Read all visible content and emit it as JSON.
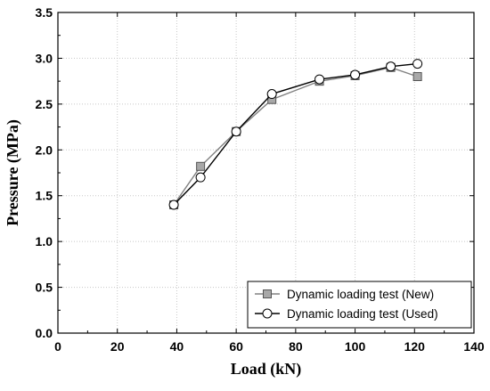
{
  "chart_data": {
    "type": "line",
    "title": "",
    "xlabel": "Load (kN)",
    "ylabel": "Pressure (MPa)",
    "xlim": [
      0,
      140
    ],
    "ylim": [
      0.0,
      3.5
    ],
    "xticks": [
      0,
      20,
      40,
      60,
      80,
      100,
      120,
      140
    ],
    "yticks": [
      0.0,
      0.5,
      1.0,
      1.5,
      2.0,
      2.5,
      3.0,
      3.5
    ],
    "xtick_labels": [
      "0",
      "20",
      "40",
      "60",
      "80",
      "100",
      "120",
      "140"
    ],
    "ytick_labels": [
      "0.0",
      "0.5",
      "1.0",
      "1.5",
      "2.0",
      "2.5",
      "3.0",
      "3.5"
    ],
    "grid": true,
    "legend_position": "bottom-right",
    "series": [
      {
        "name": "Dynamic loading test (New)",
        "marker": "square",
        "line_color": "#808080",
        "marker_fill": "#a8a8a8",
        "x": [
          39,
          48,
          60,
          72,
          88,
          100,
          112,
          121
        ],
        "y": [
          1.4,
          1.82,
          2.2,
          2.55,
          2.75,
          2.81,
          2.9,
          2.8
        ]
      },
      {
        "name": "Dynamic loading test (Used)",
        "marker": "circle",
        "line_color": "#000000",
        "marker_fill": "#ffffff",
        "x": [
          39,
          48,
          60,
          72,
          88,
          100,
          112,
          121
        ],
        "y": [
          1.4,
          1.7,
          2.2,
          2.61,
          2.77,
          2.82,
          2.91,
          2.94
        ]
      }
    ]
  }
}
